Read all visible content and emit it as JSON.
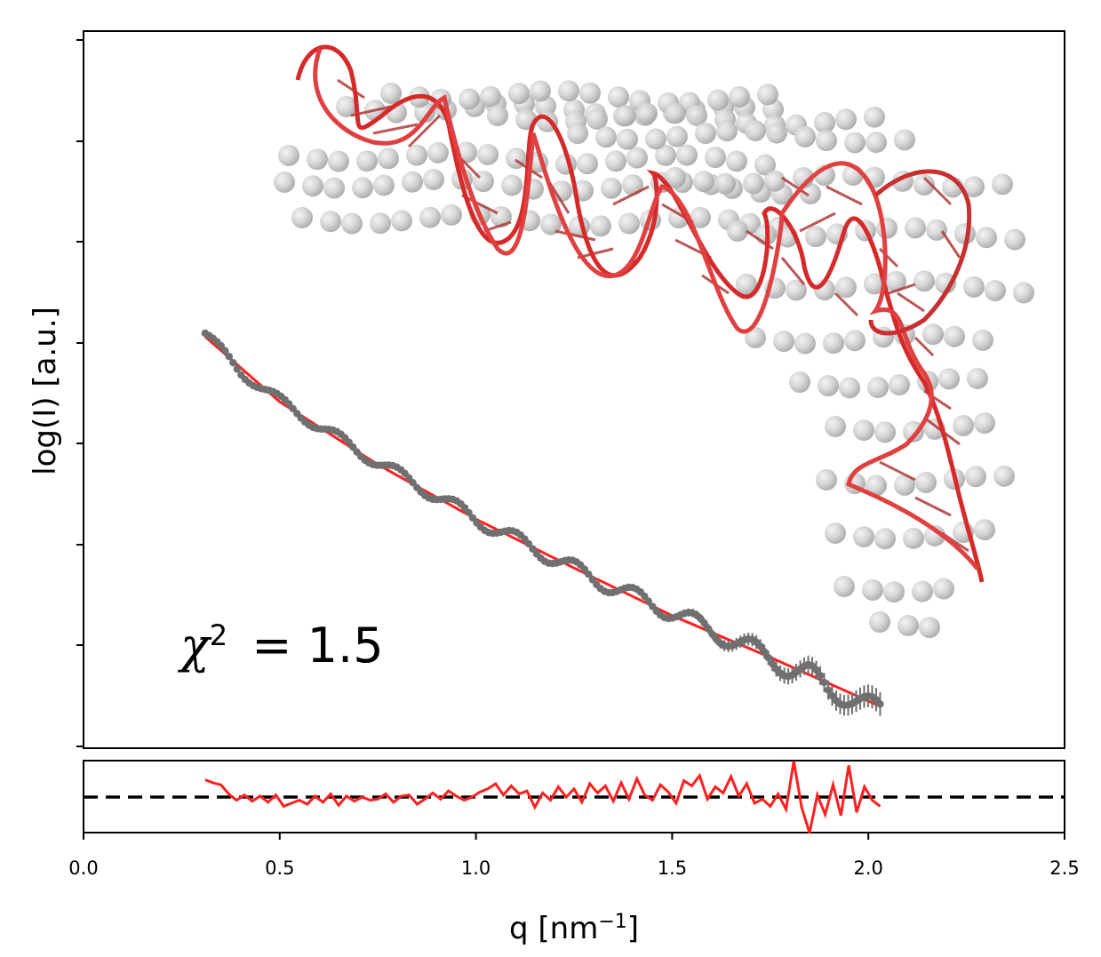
{
  "chart_data": [
    {
      "type": "scatter",
      "panel": "main",
      "xlim": [
        0.0,
        2.5
      ],
      "ylabel": "log(I) [a.u.]",
      "y_tick_labels_shown": false,
      "y_scale": "log",
      "grid": false,
      "annotation": {
        "chi_symbol": "χ",
        "exponent": "2",
        "rest": " = 1.5"
      },
      "series": [
        {
          "role": "data",
          "color": "#707070",
          "error_bars": true,
          "x": [
            0.31,
            0.4,
            0.5,
            0.6,
            0.7,
            0.8,
            0.9,
            1.0,
            1.1,
            1.2,
            1.3,
            1.4,
            1.5,
            1.6,
            1.7,
            1.8,
            1.85,
            1.9,
            1.95,
            2.03
          ],
          "y": [
            -0.77,
            -1.1,
            -1.35,
            -1.57,
            -1.78,
            -1.98,
            -2.17,
            -2.37,
            -2.54,
            -2.71,
            -2.88,
            -3.03,
            -3.17,
            -3.33,
            -3.48,
            -3.66,
            -3.7,
            -3.84,
            -3.9,
            -4.02
          ]
        },
        {
          "role": "fit",
          "color": "#ff2020",
          "x": [
            0.31,
            0.5,
            0.75,
            1.0,
            1.25,
            1.5,
            1.75,
            2.03
          ],
          "y": [
            -0.8,
            -1.36,
            -1.9,
            -2.37,
            -2.79,
            -3.2,
            -3.56,
            -3.98
          ]
        }
      ],
      "inset_image": "RNA-helix-cartoon-with-bead-model"
    },
    {
      "type": "line",
      "panel": "residuals",
      "xlim": [
        0.0,
        2.5
      ],
      "x_ticks": [
        "0.0",
        "0.5",
        "1.0",
        "1.5",
        "2.0",
        "2.5"
      ],
      "xlabel": "q [nm",
      "xlabel_sup": "−1",
      "xlabel_close": "]",
      "zero_line": {
        "style": "dashed",
        "color": "#000000"
      },
      "series": [
        {
          "color": "#ff2020",
          "x": [
            0.31,
            0.33,
            0.35,
            0.37,
            0.39,
            0.41,
            0.43,
            0.45,
            0.47,
            0.49,
            0.51,
            0.53,
            0.55,
            0.57,
            0.59,
            0.61,
            0.63,
            0.65,
            0.67,
            0.69,
            0.71,
            0.73,
            0.75,
            0.77,
            0.79,
            0.81,
            0.83,
            0.85,
            0.87,
            0.89,
            0.91,
            0.93,
            0.95,
            0.97,
            0.99,
            1.01,
            1.03,
            1.05,
            1.07,
            1.09,
            1.11,
            1.13,
            1.15,
            1.17,
            1.19,
            1.21,
            1.23,
            1.25,
            1.27,
            1.29,
            1.31,
            1.33,
            1.35,
            1.37,
            1.39,
            1.41,
            1.43,
            1.45,
            1.47,
            1.49,
            1.51,
            1.53,
            1.55,
            1.57,
            1.59,
            1.61,
            1.63,
            1.65,
            1.67,
            1.69,
            1.71,
            1.73,
            1.75,
            1.77,
            1.79,
            1.81,
            1.83,
            1.85,
            1.87,
            1.89,
            1.91,
            1.93,
            1.95,
            1.97,
            1.99,
            2.01,
            2.03
          ],
          "y": [
            1.7,
            1.4,
            1.2,
            0.3,
            -0.3,
            0.2,
            -0.4,
            0.1,
            -0.5,
            0.2,
            -0.9,
            -0.6,
            -0.3,
            -0.7,
            0.1,
            -0.5,
            0.3,
            -0.8,
            0.1,
            -0.4,
            0.0,
            -0.3,
            -0.2,
            0.3,
            -0.5,
            0.1,
            0.2,
            -0.7,
            -0.2,
            0.4,
            -0.2,
            0.6,
            0.1,
            -0.3,
            0.0,
            0.5,
            0.8,
            1.3,
            0.2,
            1.1,
            0.3,
            0.6,
            -1.0,
            0.4,
            -0.3,
            1.0,
            0.0,
            0.8,
            -0.5,
            1.3,
            0.4,
            1.1,
            -0.4,
            1.4,
            -0.2,
            1.8,
            0.2,
            -0.3,
            1.2,
            0.5,
            -0.6,
            1.6,
            1.1,
            2.1,
            -0.2,
            1.0,
            0.4,
            2.0,
            0.1,
            1.3,
            -0.6,
            -0.2,
            -0.9,
            0.3,
            -1.2,
            3.5,
            -1.0,
            -3.5,
            0.2,
            -1.7,
            1.2,
            -1.8,
            3.1,
            -1.5,
            1.0,
            -0.3,
            -0.9
          ]
        }
      ]
    }
  ]
}
